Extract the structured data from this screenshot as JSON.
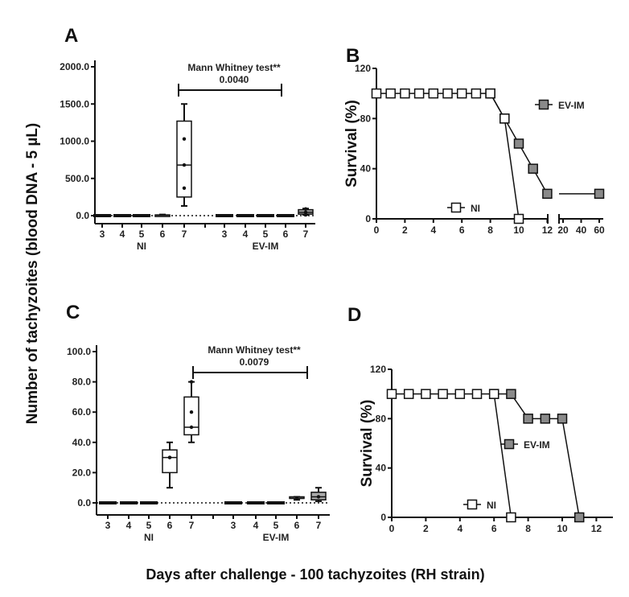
{
  "figure": {
    "shared_ylabel_left": "Number of tachyzoites  (blood DNA - 5 µL)",
    "shared_xlabel": "Days after challenge -  100 tachyzoites (RH strain)"
  },
  "colors": {
    "filled_marker": "#8a8a8a",
    "open_marker": "#ffffff",
    "line": "#111111"
  },
  "chart_data": [
    {
      "panel": "A",
      "type": "box",
      "groups": [
        "NI",
        "EV-IM"
      ],
      "categories": [
        "3",
        "4",
        "5",
        "6",
        "7"
      ],
      "ylim": [
        0,
        2000
      ],
      "yticks": [
        "0.0",
        "500.0",
        "1000.0",
        "1500.0",
        "2000.0"
      ],
      "annotation": {
        "test": "Mann Whitney test**",
        "p": "0.0040"
      },
      "boxes": {
        "NI": [
          {
            "day": "3",
            "min": 0,
            "q1": 0,
            "median": 0,
            "q3": 0,
            "max": 0,
            "points": []
          },
          {
            "day": "4",
            "min": 0,
            "q1": 0,
            "median": 0,
            "q3": 0,
            "max": 0,
            "points": []
          },
          {
            "day": "5",
            "min": 0,
            "q1": 0,
            "median": 0,
            "q3": 0,
            "max": 0,
            "points": []
          },
          {
            "day": "6",
            "min": 0,
            "q1": 0,
            "median": 5,
            "q3": 10,
            "max": 15,
            "points": []
          },
          {
            "day": "7",
            "min": 130,
            "q1": 250,
            "median": 680,
            "q3": 1270,
            "max": 1500,
            "points": [
              370,
              680,
              1030
            ]
          }
        ],
        "EV-IM": [
          {
            "day": "3",
            "min": 0,
            "q1": 0,
            "median": 0,
            "q3": 0,
            "max": 0,
            "points": []
          },
          {
            "day": "4",
            "min": 0,
            "q1": 0,
            "median": 0,
            "q3": 0,
            "max": 0,
            "points": []
          },
          {
            "day": "5",
            "min": 0,
            "q1": 0,
            "median": 0,
            "q3": 0,
            "max": 0,
            "points": []
          },
          {
            "day": "6",
            "min": 0,
            "q1": 0,
            "median": 0,
            "q3": 0,
            "max": 0,
            "points": []
          },
          {
            "day": "7",
            "min": 10,
            "q1": 20,
            "median": 45,
            "q3": 80,
            "max": 95,
            "points": [
              10,
              45,
              90
            ]
          }
        ]
      }
    },
    {
      "panel": "B",
      "type": "line",
      "ylabel": "Survival (%)",
      "ylim": [
        0,
        120
      ],
      "yticks": [
        "0",
        "40",
        "80",
        "120"
      ],
      "xticks": [
        "0",
        "2",
        "4",
        "6",
        "8",
        "10",
        "12",
        "20",
        "40",
        "60"
      ],
      "x_axis_break": [
        12,
        20
      ],
      "series": [
        {
          "name": "NI",
          "marker": "open-square",
          "x": [
            0,
            1,
            2,
            3,
            4,
            5,
            6,
            7,
            8,
            9,
            10
          ],
          "y": [
            100,
            100,
            100,
            100,
            100,
            100,
            100,
            100,
            100,
            80,
            0
          ]
        },
        {
          "name": "EV-IM",
          "marker": "filled-square",
          "x": [
            8,
            9,
            10,
            11,
            12,
            60
          ],
          "y": [
            100,
            80,
            60,
            40,
            20,
            20
          ]
        }
      ]
    },
    {
      "panel": "C",
      "type": "box",
      "groups": [
        "NI",
        "EV-IM"
      ],
      "categories": [
        "3",
        "4",
        "5",
        "6",
        "7"
      ],
      "ylim": [
        0,
        100
      ],
      "yticks": [
        "0.0",
        "20.0",
        "40.0",
        "60.0",
        "80.0",
        "100.0"
      ],
      "annotation": {
        "test": "Mann Whitney test**",
        "p": "0.0079"
      },
      "boxes": {
        "NI": [
          {
            "day": "3",
            "min": 0,
            "q1": 0,
            "median": 0,
            "q3": 0,
            "max": 0,
            "points": []
          },
          {
            "day": "4",
            "min": 0,
            "q1": 0,
            "median": 0,
            "q3": 0,
            "max": 0,
            "points": []
          },
          {
            "day": "5",
            "min": 0,
            "q1": 0,
            "median": 0,
            "q3": 0,
            "max": 0,
            "points": []
          },
          {
            "day": "6",
            "min": 10,
            "q1": 20,
            "median": 30,
            "q3": 35,
            "max": 40,
            "points": [
              30,
              30
            ]
          },
          {
            "day": "7",
            "min": 40,
            "q1": 45,
            "median": 50,
            "q3": 70,
            "max": 80,
            "points": [
              50,
              60,
              80
            ]
          }
        ],
        "EV-IM": [
          {
            "day": "3",
            "min": 0,
            "q1": 0,
            "median": 0,
            "q3": 0,
            "max": 0,
            "points": []
          },
          {
            "day": "4",
            "min": 0,
            "q1": 0,
            "median": 0,
            "q3": 0,
            "max": 0,
            "points": []
          },
          {
            "day": "5",
            "min": 0,
            "q1": 0,
            "median": 0,
            "q3": 0,
            "max": 0,
            "points": []
          },
          {
            "day": "6",
            "min": 2,
            "q1": 3,
            "median": 3,
            "q3": 4,
            "max": 4,
            "points": [
              3
            ]
          },
          {
            "day": "7",
            "min": 1,
            "q1": 2,
            "median": 4,
            "q3": 7,
            "max": 10,
            "points": [
              4
            ]
          }
        ]
      }
    },
    {
      "panel": "D",
      "type": "line",
      "ylabel": "Survival (%)",
      "ylim": [
        0,
        120
      ],
      "yticks": [
        "0",
        "40",
        "80",
        "120"
      ],
      "xticks": [
        "0",
        "2",
        "4",
        "6",
        "8",
        "10",
        "12"
      ],
      "series": [
        {
          "name": "NI",
          "marker": "open-square",
          "x": [
            0,
            1,
            2,
            3,
            4,
            5,
            6,
            7
          ],
          "y": [
            100,
            100,
            100,
            100,
            100,
            100,
            100,
            0
          ]
        },
        {
          "name": "EV-IM",
          "marker": "filled-square",
          "x": [
            6,
            7,
            8,
            9,
            10,
            11
          ],
          "y": [
            100,
            100,
            80,
            80,
            80,
            0
          ]
        }
      ]
    }
  ]
}
